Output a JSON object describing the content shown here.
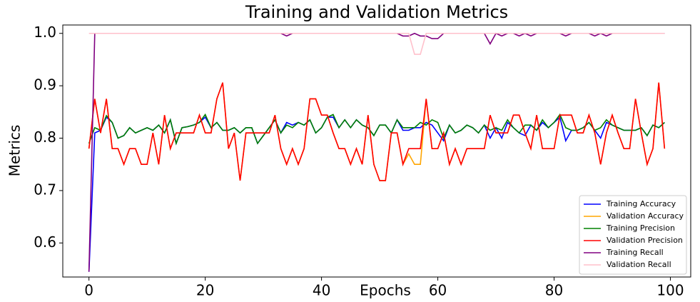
{
  "chart_data": {
    "type": "line",
    "title": "Training and Validation Metrics",
    "x_label": "Epochs",
    "y_label": "Metrics",
    "x": [
      0,
      1,
      2,
      3,
      4,
      5,
      6,
      7,
      8,
      9,
      10,
      11,
      12,
      13,
      14,
      15,
      16,
      17,
      18,
      19,
      20,
      21,
      22,
      23,
      24,
      25,
      26,
      27,
      28,
      29,
      30,
      31,
      32,
      33,
      34,
      35,
      36,
      37,
      38,
      39,
      40,
      41,
      42,
      43,
      44,
      45,
      46,
      47,
      48,
      49,
      50,
      51,
      52,
      53,
      54,
      55,
      56,
      57,
      58,
      59,
      60,
      61,
      62,
      63,
      64,
      65,
      66,
      67,
      68,
      69,
      70,
      71,
      72,
      73,
      74,
      75,
      76,
      77,
      78,
      79,
      80,
      81,
      82,
      83,
      84,
      85,
      86,
      87,
      88,
      89,
      90,
      91,
      92,
      93,
      94,
      95,
      96,
      97,
      98,
      99
    ],
    "xlim": [
      -4.5,
      103.5
    ],
    "xticks": [
      0,
      20,
      40,
      60,
      80,
      100
    ],
    "ylim": [
      0.535,
      1.016
    ],
    "yticks": [
      0.6,
      0.7,
      0.8,
      0.9,
      {
        "value": 1,
        "label": "1.0"
      }
    ],
    "legend": "lower right",
    "series": [
      {
        "name": "Training Accuracy",
        "color": "#0000ff",
        "values": [
          0.545,
          0.81,
          0.815,
          0.84,
          0.83,
          0.8,
          0.805,
          0.82,
          0.81,
          0.815,
          0.82,
          0.815,
          0.825,
          0.81,
          0.835,
          0.79,
          0.82,
          0.822,
          0.825,
          0.83,
          0.84,
          0.82,
          0.83,
          0.815,
          0.815,
          0.82,
          0.81,
          0.82,
          0.82,
          0.79,
          0.805,
          0.82,
          0.835,
          0.81,
          0.83,
          0.825,
          0.83,
          0.825,
          0.835,
          0.81,
          0.82,
          0.84,
          0.84,
          0.82,
          0.835,
          0.82,
          0.835,
          0.825,
          0.82,
          0.805,
          0.825,
          0.825,
          0.81,
          0.835,
          0.815,
          0.815,
          0.82,
          0.82,
          0.83,
          0.825,
          0.81,
          0.795,
          0.825,
          0.81,
          0.815,
          0.825,
          0.82,
          0.81,
          0.825,
          0.8,
          0.82,
          0.8,
          0.83,
          0.82,
          0.81,
          0.805,
          0.825,
          0.815,
          0.83,
          0.82,
          0.83,
          0.84,
          0.795,
          0.815,
          0.815,
          0.82,
          0.83,
          0.815,
          0.8,
          0.83,
          0.825,
          0.82,
          0.815,
          0.815,
          0.815,
          0.82,
          0.805,
          0.825,
          0.82,
          0.83
        ]
      },
      {
        "name": "Validation Accuracy",
        "color": "#ffa500",
        "values": [
          0.78,
          0.875,
          0.81,
          0.875,
          0.78,
          0.78,
          0.75,
          0.78,
          0.78,
          0.75,
          0.75,
          0.81,
          0.75,
          0.844,
          0.78,
          0.81,
          0.81,
          0.81,
          0.81,
          0.844,
          0.81,
          0.81,
          0.875,
          0.906,
          0.78,
          0.81,
          0.719,
          0.81,
          0.81,
          0.81,
          0.81,
          0.81,
          0.844,
          0.78,
          0.75,
          0.78,
          0.75,
          0.78,
          0.875,
          0.875,
          0.844,
          0.844,
          0.81,
          0.78,
          0.78,
          0.75,
          0.78,
          0.75,
          0.844,
          0.75,
          0.719,
          0.719,
          0.81,
          0.81,
          0.75,
          0.77,
          0.75,
          0.75,
          0.875,
          0.78,
          0.78,
          0.81,
          0.75,
          0.78,
          0.75,
          0.78,
          0.78,
          0.78,
          0.78,
          0.844,
          0.81,
          0.81,
          0.81,
          0.844,
          0.844,
          0.81,
          0.78,
          0.844,
          0.78,
          0.78,
          0.78,
          0.844,
          0.844,
          0.844,
          0.81,
          0.81,
          0.844,
          0.81,
          0.75,
          0.81,
          0.844,
          0.81,
          0.78,
          0.78,
          0.875,
          0.81,
          0.75,
          0.78,
          0.906,
          0.78
        ]
      },
      {
        "name": "Training Precision",
        "color": "#008000",
        "values": [
          0.79,
          0.82,
          0.815,
          0.843,
          0.83,
          0.8,
          0.805,
          0.82,
          0.81,
          0.815,
          0.82,
          0.815,
          0.825,
          0.81,
          0.835,
          0.79,
          0.82,
          0.822,
          0.825,
          0.83,
          0.845,
          0.82,
          0.83,
          0.815,
          0.815,
          0.82,
          0.81,
          0.82,
          0.82,
          0.79,
          0.805,
          0.82,
          0.835,
          0.81,
          0.825,
          0.82,
          0.83,
          0.825,
          0.835,
          0.81,
          0.82,
          0.84,
          0.845,
          0.82,
          0.835,
          0.82,
          0.835,
          0.825,
          0.82,
          0.805,
          0.825,
          0.825,
          0.81,
          0.835,
          0.82,
          0.82,
          0.82,
          0.83,
          0.825,
          0.835,
          0.83,
          0.8,
          0.825,
          0.81,
          0.815,
          0.825,
          0.82,
          0.81,
          0.825,
          0.815,
          0.82,
          0.815,
          0.835,
          0.82,
          0.81,
          0.825,
          0.825,
          0.815,
          0.835,
          0.82,
          0.83,
          0.845,
          0.82,
          0.815,
          0.815,
          0.82,
          0.83,
          0.815,
          0.82,
          0.835,
          0.825,
          0.82,
          0.815,
          0.815,
          0.815,
          0.82,
          0.805,
          0.825,
          0.82,
          0.83
        ]
      },
      {
        "name": "Validation Precision",
        "color": "#ff0000",
        "values": [
          0.78,
          0.875,
          0.81,
          0.875,
          0.78,
          0.78,
          0.75,
          0.78,
          0.78,
          0.75,
          0.75,
          0.81,
          0.75,
          0.844,
          0.78,
          0.81,
          0.81,
          0.81,
          0.81,
          0.844,
          0.81,
          0.81,
          0.875,
          0.906,
          0.78,
          0.81,
          0.719,
          0.81,
          0.81,
          0.81,
          0.81,
          0.81,
          0.844,
          0.78,
          0.75,
          0.78,
          0.75,
          0.78,
          0.875,
          0.875,
          0.844,
          0.844,
          0.81,
          0.78,
          0.78,
          0.75,
          0.78,
          0.75,
          0.844,
          0.75,
          0.719,
          0.719,
          0.81,
          0.81,
          0.75,
          0.78,
          0.78,
          0.78,
          0.875,
          0.78,
          0.78,
          0.81,
          0.75,
          0.78,
          0.75,
          0.78,
          0.78,
          0.78,
          0.78,
          0.844,
          0.81,
          0.81,
          0.81,
          0.844,
          0.844,
          0.81,
          0.78,
          0.844,
          0.78,
          0.78,
          0.78,
          0.844,
          0.844,
          0.844,
          0.81,
          0.81,
          0.844,
          0.81,
          0.75,
          0.81,
          0.844,
          0.81,
          0.78,
          0.78,
          0.875,
          0.81,
          0.75,
          0.78,
          0.906,
          0.78
        ]
      },
      {
        "name": "Training Recall",
        "color": "#800080",
        "values": [
          0.545,
          1,
          1,
          1,
          1,
          1,
          1,
          1,
          1,
          1,
          1,
          1,
          1,
          1,
          1,
          1,
          1,
          1,
          1,
          1,
          1,
          1,
          1,
          1,
          1,
          1,
          1,
          1,
          1,
          1,
          1,
          1,
          1,
          1,
          0.995,
          1,
          1,
          1,
          1,
          1,
          1,
          1,
          1,
          1,
          1,
          1,
          1,
          1,
          1,
          1,
          1,
          1,
          1,
          1,
          0.995,
          0.995,
          1,
          0.995,
          0.995,
          0.99,
          0.99,
          1,
          1,
          1,
          1,
          1,
          1,
          1,
          1,
          0.98,
          1,
          0.995,
          1,
          1,
          0.995,
          1,
          0.995,
          1,
          1,
          1,
          1,
          1,
          0.995,
          1,
          1,
          1,
          1,
          0.995,
          1,
          0.995,
          1,
          1,
          1,
          1,
          1,
          1,
          1,
          1,
          1,
          1
        ]
      },
      {
        "name": "Validation Recall",
        "color": "#ffc0cb",
        "values": [
          1,
          1,
          1,
          1,
          1,
          1,
          1,
          1,
          1,
          1,
          1,
          1,
          1,
          1,
          1,
          1,
          1,
          1,
          1,
          1,
          1,
          1,
          1,
          1,
          1,
          1,
          1,
          1,
          1,
          1,
          1,
          1,
          1,
          1,
          1,
          1,
          1,
          1,
          1,
          1,
          1,
          1,
          1,
          1,
          1,
          1,
          1,
          1,
          1,
          1,
          1,
          1,
          1,
          1,
          1,
          1,
          0.96,
          0.96,
          1,
          1,
          1,
          1,
          1,
          1,
          1,
          1,
          1,
          1,
          1,
          1,
          1,
          1,
          1,
          1,
          1,
          1,
          1,
          1,
          1,
          1,
          1,
          1,
          1,
          1,
          1,
          1,
          1,
          1,
          1,
          1,
          1,
          1,
          1,
          1,
          1,
          1,
          1,
          1,
          1,
          1
        ]
      }
    ]
  }
}
